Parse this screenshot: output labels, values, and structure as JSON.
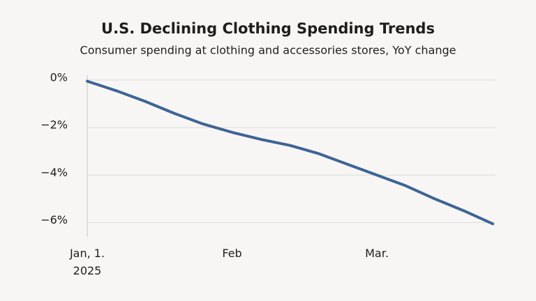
{
  "chart_data": {
    "type": "line",
    "title": "U.S. Declining Clothing Spending Trends",
    "subtitle": "Consumer spending at clothing and accessories stores, YoY change",
    "categories": [
      "Jan, 1.\n2025",
      null,
      null,
      null,
      null,
      "Feb",
      null,
      null,
      null,
      null,
      "Mar.",
      null,
      null,
      null,
      null
    ],
    "values": [
      -0.05,
      -0.45,
      -0.9,
      -1.4,
      -1.85,
      -2.2,
      -2.5,
      -2.75,
      -3.1,
      -3.55,
      -4.0,
      -4.45,
      -5.0,
      -5.5,
      -6.05
    ],
    "color": "#3d6496",
    "ylim": [
      -6.6,
      0.2
    ],
    "yticks": [
      {
        "value": 0,
        "label": "0%"
      },
      {
        "value": -2,
        "label": "−2%"
      },
      {
        "value": -4,
        "label": "−4%"
      },
      {
        "value": -6,
        "label": "−6%"
      }
    ],
    "grid": true
  }
}
